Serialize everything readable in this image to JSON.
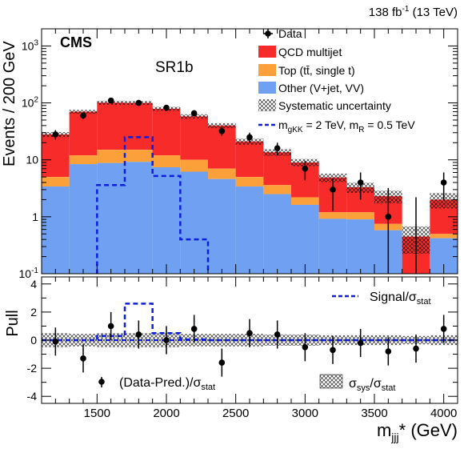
{
  "header": {
    "lumi_text": "138 fb",
    "lumi_sup": "-1",
    "lumi_energy": " (13 TeV)",
    "experiment": "CMS",
    "region": "SR1b"
  },
  "colors": {
    "qcd": "#f82b2b",
    "top": "#fca03a",
    "other": "#6fa0f1",
    "signal": "#0f1edd",
    "data": "#000000"
  },
  "legend": {
    "data": "Data",
    "qcd": "QCD multijet",
    "top": "Top (tt̄, single t)",
    "other": "Other (V+jet, VV)",
    "syst": "Systematic uncertainty",
    "signal_prefix": "m",
    "signal_sub1": "gKK",
    "signal_mid": " = 2 TeV, m",
    "signal_sub2": "R",
    "signal_suffix": " = 0.5 TeV"
  },
  "pull_legend": {
    "signal": "Signal/σ",
    "signal_sub": "stat",
    "data": "(Data-Pred.)/σ",
    "data_sub": "stat",
    "syst_sigma": "σ",
    "syst_sub1": "sys",
    "syst_mid": "/σ",
    "syst_sub2": "stat"
  },
  "axes": {
    "ylabel_top": "Events / 200 GeV",
    "ylabel_bottom": "Pull",
    "xlabel": "m",
    "xlabel_sub": "jjj",
    "xlabel_suffix": "* (GeV)"
  },
  "chart_data": [
    {
      "type": "bar",
      "stacked": true,
      "log_y": true,
      "ylim": [
        0.1,
        2000
      ],
      "xlim": [
        1100,
        4100
      ],
      "bin_edges": [
        1100,
        1300,
        1500,
        1700,
        1900,
        2100,
        2300,
        2500,
        2700,
        2900,
        3100,
        3300,
        3500,
        3700,
        3900,
        4100
      ],
      "x_ticks": [
        1500,
        2000,
        2500,
        3000,
        3500,
        4000
      ],
      "y_ticks": [
        "10^-1",
        "1",
        "10",
        "10^2",
        "10^3"
      ],
      "series": [
        {
          "name": "Other (V+jet, VV)",
          "values": [
            3.4,
            8.4,
            8.8,
            9.2,
            7.4,
            6.2,
            4.6,
            3.4,
            2.5,
            1.62,
            0.92,
            0.9,
            0.58,
            0.1,
            0.42
          ]
        },
        {
          "name": "Top (tt̄, single t)",
          "values": [
            1.6,
            3.6,
            6.2,
            5.8,
            4.6,
            3.8,
            2.4,
            1.6,
            1.1,
            0.58,
            0.28,
            0.3,
            0.17,
            0.0,
            0.08
          ]
        },
        {
          "name": "QCD multijet",
          "values": [
            23,
            58,
            86,
            85,
            67,
            48,
            33,
            16,
            10,
            6.8,
            3.7,
            2.1,
            1.55,
            0.35,
            1.5
          ]
        },
        {
          "name": "Systematic uncertainty (relative)",
          "values": [
            0.1,
            0.08,
            0.08,
            0.08,
            0.08,
            0.09,
            0.1,
            0.12,
            0.13,
            0.15,
            0.17,
            0.2,
            0.25,
            0.5,
            0.3
          ]
        }
      ],
      "signal": {
        "name": "m_gKK = 2 TeV, m_R = 0.5 TeV",
        "values": [
          0.01,
          0.01,
          3.6,
          25,
          5.2,
          0.4,
          0.01,
          0.01,
          0.01,
          0.01,
          0.01,
          0.01,
          0.01,
          0.01,
          0.01
        ]
      },
      "data": {
        "name": "Data",
        "x": [
          1200,
          1400,
          1600,
          1800,
          2000,
          2200,
          2400,
          2600,
          2800,
          3000,
          3200,
          3400,
          3600,
          3800,
          4000
        ],
        "y": [
          28,
          60,
          110,
          100,
          82,
          66,
          32,
          25,
          16,
          7,
          3,
          4,
          1,
          0,
          4
        ]
      }
    },
    {
      "type": "line",
      "title": "Pull",
      "ylim": [
        -4.5,
        4.5
      ],
      "y_ticks": [
        -4,
        -2,
        0,
        2,
        4
      ],
      "data_pull": {
        "x": [
          1200,
          1400,
          1600,
          1800,
          2000,
          2200,
          2400,
          2600,
          2800,
          3000,
          3200,
          3400,
          3600,
          3800,
          4000
        ],
        "y": [
          -0.1,
          -1.3,
          1.0,
          0.4,
          0.0,
          0.8,
          -1.6,
          0.5,
          0.4,
          -0.5,
          -0.7,
          -0.2,
          -0.8,
          -0.6,
          0.8
        ]
      },
      "signal_pull": [
        0,
        0,
        0.3,
        2.6,
        0.5,
        0.05,
        0,
        0,
        0,
        0,
        0,
        0,
        0,
        0,
        0
      ],
      "syst_band": [
        0.5,
        0.45,
        0.5,
        0.5,
        0.5,
        0.45,
        0.45,
        0.45,
        0.4,
        0.4,
        0.35,
        0.35,
        0.35,
        0.3,
        0.35
      ]
    }
  ]
}
